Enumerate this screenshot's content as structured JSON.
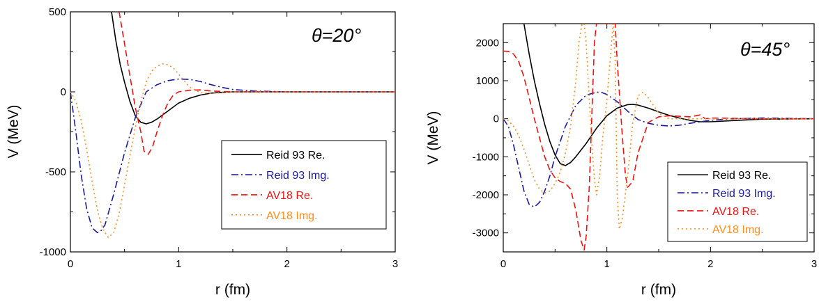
{
  "colors": {
    "reid_re": "#000000",
    "reid_img": "#1a1aa0",
    "av18_re": "#ee1111",
    "av18_img": "#ff8c1a"
  },
  "chart_data": [
    {
      "type": "line",
      "annotation": "θ=20°",
      "xlabel": "r (fm)",
      "ylabel": "V (MeV)",
      "xlim": [
        0,
        3
      ],
      "ylim": [
        -1000,
        500
      ],
      "xticks": [
        0,
        1,
        2,
        3
      ],
      "yticks": [
        -1000,
        -500,
        0,
        500
      ],
      "grid": false,
      "legend": "lower-right",
      "series": [
        {
          "name": "Reid 93 Re.",
          "style": "solid",
          "color": "#000000",
          "x": [
            0.38,
            0.42,
            0.46,
            0.5,
            0.55,
            0.6,
            0.65,
            0.7,
            0.75,
            0.8,
            0.9,
            1.0,
            1.1,
            1.2,
            1.3,
            1.4,
            1.5,
            1.7,
            2.0,
            2.5,
            3.0
          ],
          "y": [
            500,
            320,
            170,
            60,
            -60,
            -150,
            -190,
            -200,
            -190,
            -170,
            -120,
            -70,
            -40,
            -20,
            -8,
            -3,
            0,
            0,
            0,
            0,
            0
          ]
        },
        {
          "name": "Reid 93 Img.",
          "style": "dashdot",
          "color": "#1a1aa0",
          "x": [
            0,
            0.05,
            0.1,
            0.15,
            0.2,
            0.25,
            0.28,
            0.32,
            0.4,
            0.5,
            0.6,
            0.7,
            0.8,
            0.9,
            1.0,
            1.1,
            1.2,
            1.3,
            1.4,
            1.5,
            1.7,
            2.0,
            3.0
          ],
          "y": [
            0,
            -250,
            -520,
            -730,
            -850,
            -880,
            -870,
            -830,
            -640,
            -380,
            -160,
            0,
            45,
            70,
            80,
            78,
            65,
            45,
            28,
            15,
            5,
            0,
            0
          ]
        },
        {
          "name": "AV18 Re.",
          "style": "dashed",
          "color": "#ee1111",
          "x": [
            0.45,
            0.5,
            0.55,
            0.6,
            0.65,
            0.68,
            0.72,
            0.76,
            0.8,
            0.85,
            0.9,
            0.95,
            1.0,
            1.1,
            1.2,
            1.3,
            1.5,
            2.0,
            3.0
          ],
          "y": [
            500,
            300,
            100,
            -100,
            -250,
            -370,
            -390,
            -340,
            -250,
            -150,
            -70,
            -20,
            0,
            10,
            12,
            5,
            0,
            0,
            0
          ]
        },
        {
          "name": "AV18 Img.",
          "style": "dotted",
          "color": "#ff8c1a",
          "x": [
            0,
            0.05,
            0.1,
            0.15,
            0.2,
            0.25,
            0.3,
            0.35,
            0.4,
            0.45,
            0.5,
            0.55,
            0.6,
            0.65,
            0.7,
            0.75,
            0.8,
            0.85,
            0.9,
            0.95,
            1.0,
            1.05,
            1.1,
            1.2,
            1.3,
            1.4,
            1.5,
            2.0,
            3.0
          ],
          "y": [
            0,
            -60,
            -180,
            -360,
            -560,
            -740,
            -860,
            -910,
            -880,
            -760,
            -580,
            -400,
            -220,
            -60,
            60,
            130,
            160,
            175,
            170,
            150,
            110,
            70,
            30,
            -5,
            -10,
            -5,
            0,
            0,
            0
          ]
        }
      ]
    },
    {
      "type": "line",
      "annotation": "θ=45°",
      "xlabel": "r (fm)",
      "ylabel": "V (MeV)",
      "xlim": [
        0,
        3
      ],
      "ylim": [
        -3500,
        2500
      ],
      "xticks": [
        0,
        1,
        2,
        3
      ],
      "yticks": [
        -3000,
        -2000,
        -1000,
        0,
        1000,
        2000
      ],
      "grid": false,
      "legend": "lower-right",
      "series": [
        {
          "name": "Reid 93 Re.",
          "style": "solid",
          "color": "#000000",
          "x": [
            0.2,
            0.25,
            0.3,
            0.35,
            0.4,
            0.45,
            0.5,
            0.55,
            0.6,
            0.65,
            0.7,
            0.8,
            0.9,
            1.0,
            1.1,
            1.2,
            1.25,
            1.3,
            1.4,
            1.5,
            1.6,
            1.7,
            1.8,
            1.9,
            2.0,
            2.2,
            2.5,
            3.0
          ],
          "y": [
            2500,
            1700,
            1000,
            400,
            -150,
            -600,
            -950,
            -1180,
            -1230,
            -1150,
            -1000,
            -650,
            -250,
            80,
            280,
            370,
            380,
            360,
            280,
            180,
            90,
            20,
            -40,
            -80,
            -80,
            -50,
            -10,
            0
          ]
        },
        {
          "name": "Reid 93 Img.",
          "style": "dashdot",
          "color": "#1a1aa0",
          "x": [
            0,
            0.05,
            0.1,
            0.15,
            0.2,
            0.25,
            0.3,
            0.35,
            0.4,
            0.45,
            0.5,
            0.6,
            0.7,
            0.8,
            0.9,
            0.95,
            1.0,
            1.1,
            1.2,
            1.3,
            1.4,
            1.5,
            1.6,
            1.7,
            1.8,
            2.0,
            2.2,
            2.5,
            3.0
          ],
          "y": [
            0,
            -200,
            -700,
            -1300,
            -1900,
            -2250,
            -2320,
            -2200,
            -1900,
            -1500,
            -1000,
            -200,
            350,
            620,
            700,
            690,
            640,
            450,
            200,
            -20,
            -120,
            -170,
            -190,
            -170,
            -120,
            -40,
            0,
            20,
            0
          ]
        },
        {
          "name": "AV18 Re.",
          "style": "dashed",
          "color": "#ee1111",
          "x": [
            0,
            0.05,
            0.1,
            0.15,
            0.2,
            0.25,
            0.3,
            0.35,
            0.4,
            0.45,
            0.5,
            0.55,
            0.6,
            0.65,
            0.7,
            0.75,
            0.78,
            0.8,
            0.83,
            0.86,
            0.88,
            0.9,
            0.92,
            0.95,
            1.0,
            1.02,
            1.05,
            1.08,
            1.1,
            1.15,
            1.18,
            1.2,
            1.25,
            1.3,
            1.4,
            1.5,
            1.6,
            1.8,
            1.9,
            1.95,
            2.0,
            2.5,
            3.0
          ],
          "y": [
            1780,
            1770,
            1700,
            1500,
            1100,
            550,
            0,
            -500,
            -1000,
            -1350,
            -1550,
            -1650,
            -1700,
            -1850,
            -2400,
            -3200,
            -3450,
            -3100,
            -1800,
            500,
            2000,
            2500,
            2500,
            2500,
            2500,
            2500,
            2500,
            2500,
            1500,
            -500,
            -1500,
            -1800,
            -1650,
            -900,
            -100,
            50,
            80,
            50,
            100,
            0,
            20,
            0,
            0
          ]
        },
        {
          "name": "AV18 Img.",
          "style": "dotted",
          "color": "#ff8c1a",
          "x": [
            0,
            0.05,
            0.1,
            0.15,
            0.2,
            0.25,
            0.3,
            0.35,
            0.4,
            0.45,
            0.5,
            0.55,
            0.6,
            0.65,
            0.7,
            0.73,
            0.76,
            0.78,
            0.8,
            0.82,
            0.85,
            0.88,
            0.9,
            0.93,
            0.96,
            1.0,
            1.03,
            1.06,
            1.08,
            1.1,
            1.12,
            1.15,
            1.2,
            1.25,
            1.3,
            1.35,
            1.4,
            1.5,
            1.6,
            1.8,
            2.0,
            2.2,
            2.5,
            3.0
          ],
          "y": [
            0,
            -50,
            -200,
            -450,
            -800,
            -1200,
            -1600,
            -1850,
            -1950,
            -1900,
            -1700,
            -1400,
            -900,
            -200,
            1000,
            2000,
            2500,
            2500,
            2000,
            1000,
            -500,
            -1600,
            -2000,
            -1500,
            -500,
            500,
            1500,
            2500,
            1500,
            -2000,
            -2900,
            -2600,
            -1500,
            -100,
            600,
            700,
            550,
            150,
            0,
            0,
            0,
            0,
            0,
            0
          ]
        }
      ]
    }
  ]
}
